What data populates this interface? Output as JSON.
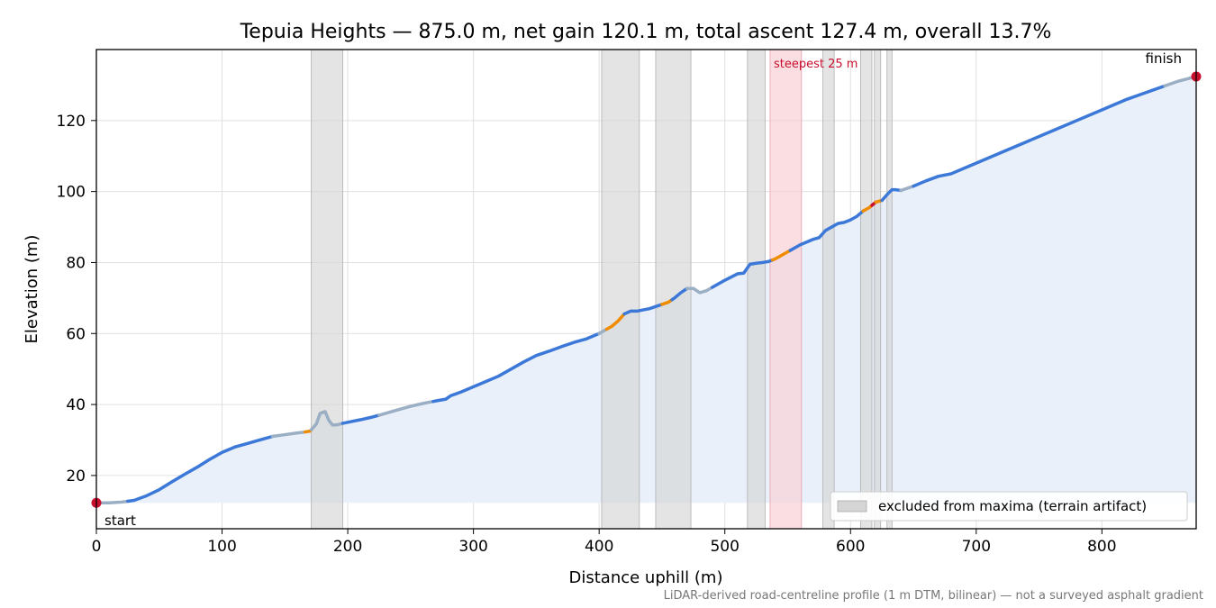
{
  "chart_data": {
    "type": "line",
    "title": "Tepuia Heights — 875.0 m, net gain 120.1 m, total ascent 127.4 m, overall 13.7%",
    "xlabel": "Distance uphill (m)",
    "ylabel": "Elevation (m)",
    "xlim": [
      0,
      875
    ],
    "ylim": [
      5,
      140
    ],
    "x_ticks": [
      0,
      100,
      200,
      300,
      400,
      500,
      600,
      700,
      800
    ],
    "y_ticks": [
      20,
      40,
      60,
      80,
      100,
      120
    ],
    "grid": true,
    "legend": {
      "placement": "lower-right",
      "entries": [
        "excluded from maxima (terrain artifact)"
      ]
    },
    "annotations": {
      "start": "start",
      "finish": "finish",
      "steepest": "steepest 25 m"
    },
    "footnote": "LiDAR-derived road-centreline profile (1 m DTM, bilinear) — not a surveyed asphalt gradient",
    "colors": {
      "line": "#3b78d8",
      "gentle": "#9aaec4",
      "moderate": "#f08c00",
      "steep": "#c8102e",
      "fill": "#e9f0fa",
      "excluded_band": "#d5d5d5",
      "steepest_band": "#f8d0d6",
      "endpoint": "#c8102e",
      "grid": "#e0e0e0"
    },
    "excluded_ranges": [
      [
        171,
        196
      ],
      [
        402,
        432
      ],
      [
        445,
        473
      ],
      [
        518,
        532
      ],
      [
        578,
        587
      ],
      [
        608,
        617
      ],
      [
        619,
        624
      ],
      [
        629,
        633
      ]
    ],
    "steepest_range": [
      536,
      561
    ],
    "series": [
      {
        "x": [
          0,
          10,
          20,
          30,
          40,
          50,
          60,
          70,
          80,
          90,
          100,
          110,
          120,
          130,
          140,
          150,
          160,
          165,
          170,
          175,
          178,
          182,
          185,
          188,
          192,
          196,
          200,
          210,
          220,
          230,
          240,
          250,
          260,
          270,
          278,
          282,
          290,
          300,
          310,
          320,
          330,
          340,
          350,
          360,
          370,
          380,
          390,
          400,
          405,
          410,
          415,
          420,
          425,
          430,
          440,
          450,
          455,
          460,
          465,
          470,
          475,
          480,
          485,
          490,
          500,
          510,
          515,
          520,
          525,
          530,
          535,
          540,
          550,
          560,
          570,
          575,
          580,
          585,
          590,
          595,
          600,
          605,
          610,
          615,
          620,
          625,
          630,
          633,
          636,
          640,
          650,
          660,
          670,
          680,
          690,
          700,
          720,
          740,
          760,
          780,
          800,
          820,
          840,
          860,
          875
        ],
        "y": [
          12.3,
          12.3,
          12.5,
          13.0,
          14.3,
          16.0,
          18.2,
          20.3,
          22.3,
          24.5,
          26.5,
          28.0,
          29.0,
          30.0,
          31.0,
          31.5,
          32.0,
          32.2,
          32.5,
          34.5,
          37.5,
          38.0,
          35.5,
          34.2,
          34.3,
          34.7,
          35.0,
          35.7,
          36.5,
          37.5,
          38.5,
          39.5,
          40.3,
          41.0,
          41.5,
          42.5,
          43.5,
          45.0,
          46.5,
          48.0,
          50.0,
          52.0,
          53.8,
          55.0,
          56.3,
          57.5,
          58.5,
          60.0,
          61.0,
          62.0,
          63.5,
          65.5,
          66.3,
          66.3,
          67.0,
          68.2,
          68.8,
          70.0,
          71.5,
          72.7,
          72.7,
          71.5,
          72.0,
          73.0,
          75.0,
          76.8,
          77.0,
          79.5,
          79.8,
          80.0,
          80.3,
          81.0,
          83.0,
          85.0,
          86.5,
          87.0,
          89.0,
          90.0,
          91.0,
          91.3,
          92.0,
          93.0,
          94.5,
          95.5,
          97.0,
          97.5,
          99.5,
          100.5,
          100.5,
          100.3,
          101.5,
          103.0,
          104.3,
          105.0,
          106.5,
          108.0,
          111.0,
          114.0,
          117.0,
          120.0,
          123.0,
          126.0,
          128.5,
          131.0,
          132.4
        ],
        "segments": [
          {
            "from": 0,
            "to": 25,
            "grade": "gentle"
          },
          {
            "from": 25,
            "to": 140,
            "grade": "normal"
          },
          {
            "from": 140,
            "to": 166,
            "grade": "gentle"
          },
          {
            "from": 166,
            "to": 171,
            "grade": "moderate"
          },
          {
            "from": 171,
            "to": 196,
            "grade": "gentle"
          },
          {
            "from": 196,
            "to": 225,
            "grade": "normal"
          },
          {
            "from": 225,
            "to": 268,
            "grade": "gentle"
          },
          {
            "from": 268,
            "to": 400,
            "grade": "normal"
          },
          {
            "from": 400,
            "to": 406,
            "grade": "gentle"
          },
          {
            "from": 406,
            "to": 420,
            "grade": "moderate"
          },
          {
            "from": 420,
            "to": 450,
            "grade": "normal"
          },
          {
            "from": 450,
            "to": 458,
            "grade": "moderate"
          },
          {
            "from": 458,
            "to": 470,
            "grade": "normal"
          },
          {
            "from": 470,
            "to": 490,
            "grade": "gentle"
          },
          {
            "from": 490,
            "to": 538,
            "grade": "normal"
          },
          {
            "from": 538,
            "to": 552,
            "grade": "moderate"
          },
          {
            "from": 552,
            "to": 610,
            "grade": "normal"
          },
          {
            "from": 610,
            "to": 617,
            "grade": "moderate"
          },
          {
            "from": 617,
            "to": 620,
            "grade": "steep"
          },
          {
            "from": 620,
            "to": 625,
            "grade": "moderate"
          },
          {
            "from": 625,
            "to": 640,
            "grade": "normal"
          },
          {
            "from": 640,
            "to": 650,
            "grade": "gentle"
          },
          {
            "from": 650,
            "to": 850,
            "grade": "normal"
          },
          {
            "from": 850,
            "to": 875,
            "grade": "gentle"
          }
        ]
      }
    ]
  }
}
